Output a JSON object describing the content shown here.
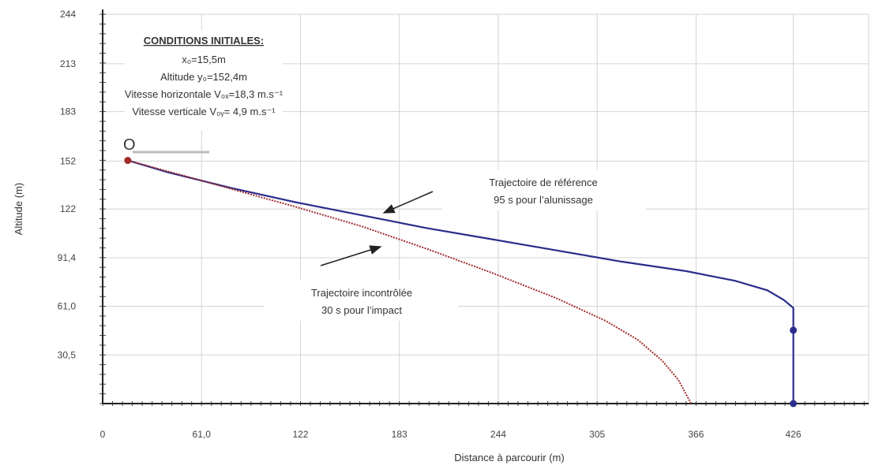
{
  "chart_data": {
    "type": "line",
    "xlabel": "Distance à parcourir (m)",
    "ylabel": "Altitude  (m)",
    "xlim": [
      0,
      530
    ],
    "ylim": [
      0,
      244
    ],
    "x_ticks": [
      {
        "value": 0,
        "label": "0"
      },
      {
        "value": 61,
        "label": "61,0"
      },
      {
        "value": 122,
        "label": "122"
      },
      {
        "value": 183,
        "label": "183"
      },
      {
        "value": 244,
        "label": "244"
      },
      {
        "value": 305,
        "label": "305"
      },
      {
        "value": 366,
        "label": "366"
      },
      {
        "value": 426,
        "label": "426"
      }
    ],
    "y_ticks": [
      {
        "value": 30.5,
        "label": "30,5"
      },
      {
        "value": 61,
        "label": "61,0"
      },
      {
        "value": 91.4,
        "label": "91,4"
      },
      {
        "value": 122,
        "label": "122"
      },
      {
        "value": 152,
        "label": "152"
      },
      {
        "value": 183,
        "label": "183"
      },
      {
        "value": 213,
        "label": "213"
      },
      {
        "value": 244,
        "label": "244"
      }
    ],
    "grid": true,
    "origin_label": "O",
    "series": [
      {
        "name": "Trajectoire de référence",
        "color": "#2b2d8c",
        "style": "solid",
        "points": [
          [
            15.5,
            152.4
          ],
          [
            40,
            145
          ],
          [
            80,
            135
          ],
          [
            120,
            126
          ],
          [
            160,
            118
          ],
          [
            200,
            110
          ],
          [
            240,
            103
          ],
          [
            280,
            96
          ],
          [
            320,
            89
          ],
          [
            360,
            83
          ],
          [
            390,
            77
          ],
          [
            410,
            71
          ],
          [
            420,
            65
          ],
          [
            426,
            60
          ],
          [
            426,
            0
          ]
        ],
        "markers": [
          [
            426,
            46
          ],
          [
            426,
            0
          ]
        ]
      },
      {
        "name": "Trajectoire incontrôlée",
        "color": "#a22b2b",
        "style": "dotted",
        "points": [
          [
            15.5,
            152.4
          ],
          [
            60,
            140
          ],
          [
            120,
            123
          ],
          [
            160,
            111
          ],
          [
            200,
            97
          ],
          [
            240,
            82
          ],
          [
            280,
            66
          ],
          [
            310,
            52
          ],
          [
            330,
            40
          ],
          [
            345,
            27
          ],
          [
            355,
            15
          ],
          [
            363,
            0
          ]
        ],
        "markers": [
          [
            15.5,
            152.4
          ]
        ]
      }
    ],
    "annotations": [
      {
        "lines": [
          "Trajectoire de référence",
          "95 s pour l’alunissage"
        ]
      },
      {
        "lines": [
          "Trajectoire incontrôlée",
          "30 s pour l’impact"
        ]
      }
    ],
    "conditions": {
      "title": "CONDITIONS INITIALES:",
      "lines": [
        "x₀=15,5m",
        "Altitude y₀=152,4m",
        "Vitesse horizontale V₀ₓ=18,3 m.s⁻¹",
        "Vitesse verticale V₀ᵧ= 4,9 m.s⁻¹"
      ]
    }
  }
}
